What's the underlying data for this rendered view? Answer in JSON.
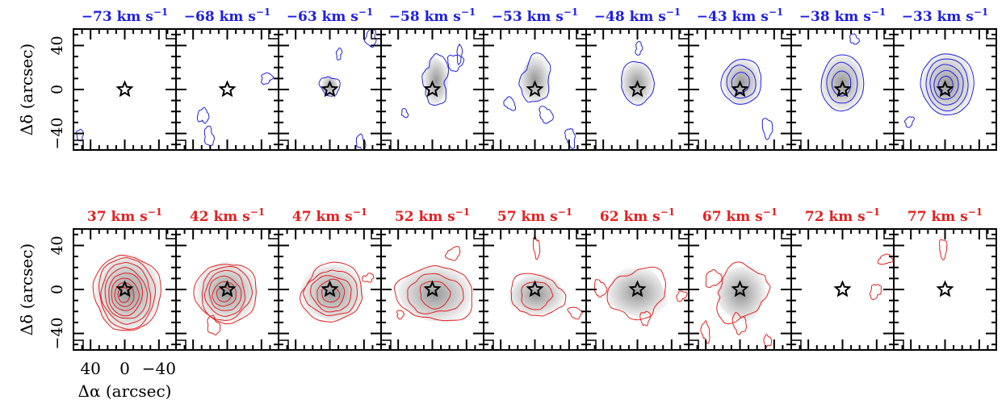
{
  "chart_data": {
    "type": "contour",
    "colors": {
      "blue": "#1e1ee6",
      "red": "#e61e1e",
      "axis": "#000000",
      "fill_dark": "#8c8c8c",
      "fill_light": "#f2f2f2"
    },
    "ylabel": "Δδ (arcsec)",
    "xlabel": "Δα (arcsec)",
    "xlim": [
      60,
      -60
    ],
    "ylim": [
      -55,
      55
    ],
    "yticks": [
      "40",
      "0",
      "−40"
    ],
    "xticks": [
      "40",
      "0",
      "−40"
    ],
    "rows": [
      {
        "color": "blue",
        "panels": [
          {
            "label": "−73 km s",
            "sup": "−1",
            "levels": 0,
            "size": [
              0,
              0
            ],
            "offset": [
              0,
              0
            ],
            "noise": 0.15
          },
          {
            "label": "−68 km s",
            "sup": "−1",
            "levels": 0,
            "size": [
              0,
              0
            ],
            "offset": [
              0,
              0
            ],
            "noise": 0.25
          },
          {
            "label": "−63 km s",
            "sup": "−1",
            "levels": 1,
            "size": [
              10,
              9
            ],
            "offset": [
              0,
              3
            ],
            "noise": 0.3
          },
          {
            "label": "−58 km s",
            "sup": "−1",
            "levels": 1,
            "size": [
              15,
              19
            ],
            "offset": [
              -4,
              8
            ],
            "noise": 0.35
          },
          {
            "label": "−53 km s",
            "sup": "−1",
            "levels": 1,
            "size": [
              18,
              19
            ],
            "offset": [
              -1,
              9
            ],
            "noise": 0.3
          },
          {
            "label": "−48 km s",
            "sup": "−1",
            "levels": 1,
            "size": [
              19,
              18
            ],
            "offset": [
              0,
              6
            ],
            "noise": 0.1
          },
          {
            "label": "−43 km s",
            "sup": "−1",
            "levels": 3,
            "size": [
              22,
              20
            ],
            "offset": [
              -2,
              7
            ],
            "noise": 0.08
          },
          {
            "label": "−38 km s",
            "sup": "−1",
            "levels": 3,
            "size": [
              24,
              24
            ],
            "offset": [
              0,
              6
            ],
            "noise": 0.05
          },
          {
            "label": "−33 km s",
            "sup": "−1",
            "levels": 5,
            "size": [
              29,
              27
            ],
            "offset": [
              -3,
              5
            ],
            "noise": 0.05
          }
        ]
      },
      {
        "color": "red",
        "panels": [
          {
            "label": "37 km s",
            "sup": "−1",
            "levels": 8,
            "size": [
              36,
              34
            ],
            "offset": [
              -3,
              -3
            ],
            "noise": 0.1
          },
          {
            "label": "42 km s",
            "sup": "−1",
            "levels": 6,
            "size": [
              33,
              27
            ],
            "offset": [
              1,
              -3
            ],
            "noise": 0.12
          },
          {
            "label": "47 km s",
            "sup": "−1",
            "levels": 5,
            "size": [
              34,
              25
            ],
            "offset": [
              -3,
              -3
            ],
            "noise": 0.15
          },
          {
            "label": "52 km s",
            "sup": "−1",
            "levels": 3,
            "size": [
              40,
              25
            ],
            "offset": [
              -4,
              -4
            ],
            "noise": 0.2
          },
          {
            "label": "57 km s",
            "sup": "−1",
            "levels": 2,
            "size": [
              30,
              18
            ],
            "offset": [
              -2,
              -5
            ],
            "noise": 0.2
          },
          {
            "label": "62 km s",
            "sup": "−1",
            "levels": 1,
            "size": [
              34,
              20
            ],
            "offset": [
              0,
              -3
            ],
            "noise": 0.3
          },
          {
            "label": "67 km s",
            "sup": "−1",
            "levels": 1,
            "size": [
              30,
              22
            ],
            "offset": [
              -2,
              -3
            ],
            "noise": 0.35
          },
          {
            "label": "72 km s",
            "sup": "−1",
            "levels": 0,
            "size": [
              0,
              0
            ],
            "offset": [
              0,
              0
            ],
            "noise": 0.2
          },
          {
            "label": "77 km s",
            "sup": "−1",
            "levels": 0,
            "size": [
              0,
              0
            ],
            "offset": [
              0,
              0
            ],
            "noise": 0.1
          }
        ]
      }
    ]
  }
}
